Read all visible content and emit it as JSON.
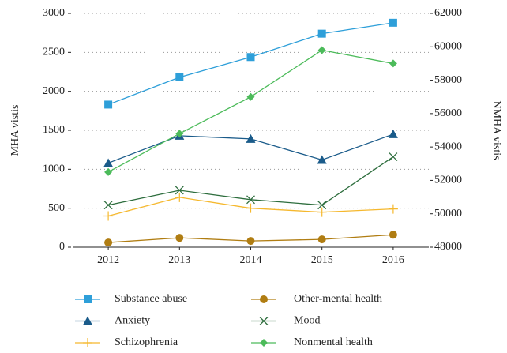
{
  "chart_data": {
    "type": "line",
    "categories": [
      "2012",
      "2013",
      "2014",
      "2015",
      "2016"
    ],
    "ylabel": "MHA vistis",
    "y2label": "NMHA vistis",
    "ylim": [
      0,
      3000
    ],
    "yticks": [
      0,
      500,
      1000,
      1500,
      2000,
      2500,
      3000
    ],
    "y2lim": [
      48000,
      62000
    ],
    "y2ticks": [
      48000,
      50000,
      52000,
      54000,
      56000,
      58000,
      60000,
      62000
    ],
    "grid": true,
    "legend": "bottom",
    "series": [
      {
        "name": "Substance abuse",
        "color": "#2e9fd9",
        "marker": "square",
        "values": [
          1830,
          2180,
          2440,
          2740,
          2880
        ]
      },
      {
        "name": "Other-mental health",
        "color": "#b07d12",
        "marker": "circle",
        "values": [
          60,
          120,
          80,
          100,
          160
        ]
      },
      {
        "name": "Anxiety",
        "color": "#1a5b8a",
        "marker": "triangle",
        "values": [
          1080,
          1430,
          1390,
          1120,
          1450
        ]
      },
      {
        "name": "Mood",
        "color": "#2e6e3e",
        "marker": "x",
        "values": [
          540,
          730,
          610,
          540,
          1160
        ]
      },
      {
        "name": "Schizophrenia",
        "color": "#f5b82e",
        "marker": "plus",
        "values": [
          400,
          640,
          500,
          450,
          490
        ]
      },
      {
        "name": "Nonmental health",
        "color": "#4cbb5a",
        "marker": "diamond",
        "axis": "y2",
        "values": [
          52500,
          54800,
          57000,
          59800,
          59000
        ]
      }
    ]
  }
}
